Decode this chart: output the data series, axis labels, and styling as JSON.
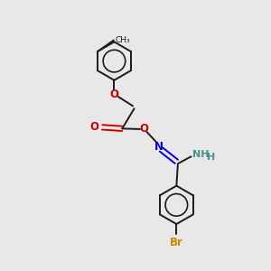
{
  "background_color": "#e8e8e8",
  "bond_color": "#1a1a1a",
  "oxygen_color": "#cc0000",
  "nitrogen_color": "#0000cc",
  "bromine_color": "#cc8800",
  "nh_color": "#4a9090",
  "figsize": [
    3.0,
    3.0
  ],
  "dpi": 100,
  "lw": 1.4,
  "ring_r": 0.72,
  "xlim": [
    0,
    10
  ],
  "ylim": [
    0,
    10
  ]
}
